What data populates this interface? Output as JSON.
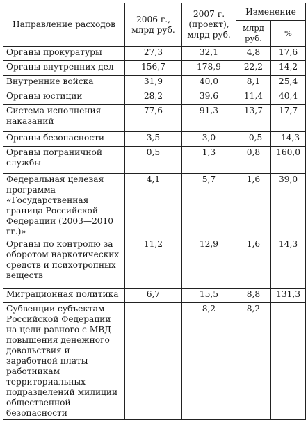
{
  "header": {
    "col_direction": "Направление расходов",
    "col_2006": "2006 г., млрд руб.",
    "col_2007": "2007 г. (проект), млрд руб.",
    "col_change": "Изменение",
    "col_change_abs": "млрд руб.",
    "col_change_pct": "%"
  },
  "rows": [
    {
      "name": "Органы прокуратуры",
      "v2006": "27,3",
      "v2007": "32,1",
      "abs": "4,8",
      "pct": "17,6"
    },
    {
      "name": "Органы внутренних дел",
      "v2006": "156,7",
      "v2007": "178,9",
      "abs": "22,2",
      "pct": "14,2"
    },
    {
      "name": "Внутренние войска",
      "v2006": "31,9",
      "v2007": "40,0",
      "abs": "8,1",
      "pct": "25,4"
    },
    {
      "name": "Органы юстиции",
      "v2006": "28,2",
      "v2007": "39,6",
      "abs": "11,4",
      "pct": "40,4"
    },
    {
      "name": "Система исполнения наказаний",
      "v2006": "77,6",
      "v2007": "91,3",
      "abs": "13,7",
      "pct": "17,7"
    },
    {
      "name": "Органы безопасности",
      "v2006": "3,5",
      "v2007": "3,0",
      "abs": "–0,5",
      "pct": "–14,3"
    },
    {
      "name": "Органы пограничной службы",
      "v2006": "0,5",
      "v2007": "1,3",
      "abs": "0,8",
      "pct": "160,0"
    },
    {
      "name": "Федеральная целевая программа «Государственная граница Российской Федерации (2003—2010 гг.)»",
      "v2006": "4,1",
      "v2007": "5,7",
      "abs": "1,6",
      "pct": "39,0"
    },
    {
      "name": "Органы по контролю за оборотом наркотических средств и психотропных веществ",
      "v2006": "11,2",
      "v2007": "12,9",
      "abs": "1,6",
      "pct": "14,3"
    },
    {
      "name": "Миграционная политика",
      "v2006": "6,7",
      "v2007": "15,5",
      "abs": "8,8",
      "pct": "131,3"
    },
    {
      "name": "Субвенции субъектам Российской Федерации на цели равного с МВД повышения денежного довольствия и заработной платы работникам территориальных подразделений милиции общественной безопасности",
      "v2006": "–",
      "v2007": "8,2",
      "abs": "8,2",
      "pct": "–"
    }
  ]
}
